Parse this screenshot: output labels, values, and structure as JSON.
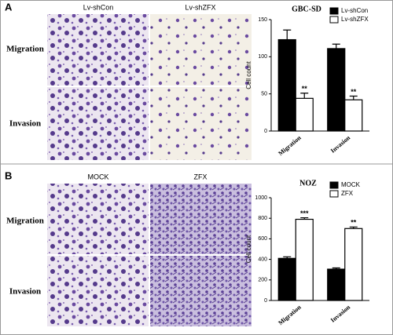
{
  "panels": [
    {
      "label": "A",
      "columns": [
        "Lv-shCon",
        "Lv-shZFX"
      ],
      "rows": [
        "Migration",
        "Invasion"
      ]
    },
    {
      "label": "B",
      "columns": [
        "MOCK",
        "ZFX"
      ],
      "rows": [
        "Migration",
        "Invasion"
      ]
    }
  ],
  "chart_data": [
    {
      "type": "bar",
      "title": "GBC-SD",
      "y_label": "Cell count",
      "categories": [
        "Migration",
        "Invasion"
      ],
      "series": [
        {
          "name": "Lv-shCon",
          "color": "#000000",
          "values": [
            123,
            111
          ],
          "errors": [
            13,
            6
          ]
        },
        {
          "name": "Lv-shZFX",
          "color": "#ffffff",
          "values": [
            44,
            42
          ],
          "errors": [
            7,
            5
          ],
          "annotations": [
            "**",
            "**"
          ]
        }
      ],
      "ylim": [
        0,
        150
      ],
      "yticks": [
        0,
        50,
        100,
        150
      ],
      "legend": "top-right"
    },
    {
      "type": "bar",
      "title": "NOZ",
      "y_label": "Cell count",
      "categories": [
        "Migration",
        "Invasion"
      ],
      "series": [
        {
          "name": "MOCK",
          "color": "#000000",
          "values": [
            410,
            305
          ],
          "errors": [
            15,
            12
          ]
        },
        {
          "name": "ZFX",
          "color": "#ffffff",
          "values": [
            790,
            700
          ],
          "errors": [
            15,
            15
          ],
          "annotations": [
            "***",
            "**"
          ]
        }
      ],
      "ylim": [
        0,
        1000
      ],
      "yticks": [
        0,
        200,
        400,
        600,
        800,
        1000
      ],
      "legend": "top-right"
    }
  ]
}
